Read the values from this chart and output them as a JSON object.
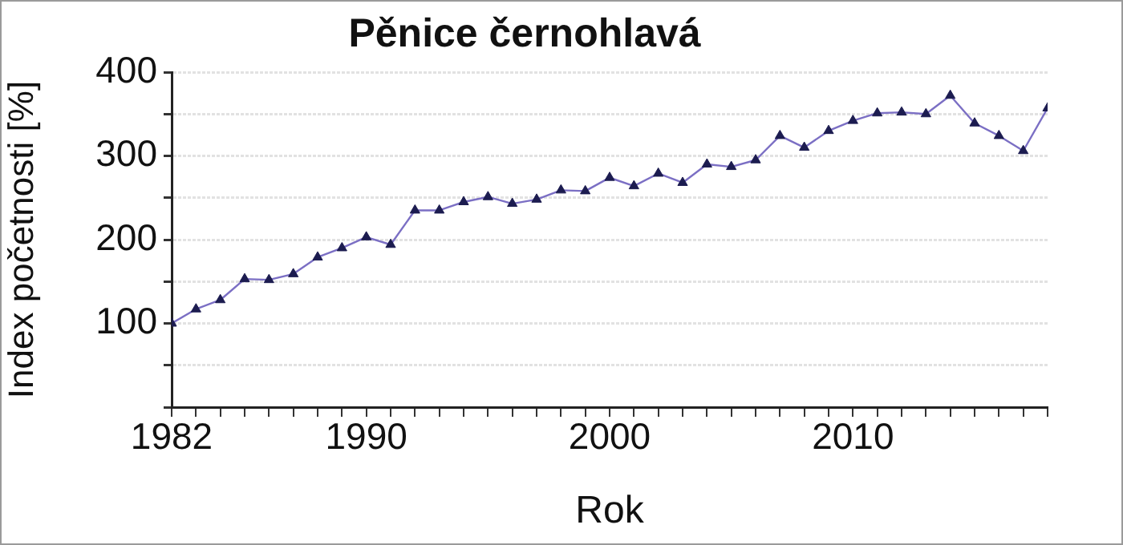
{
  "chart_data": {
    "type": "line",
    "title": "Pěnice černohlavá",
    "xlabel": "Rok",
    "ylabel": "Index početnosti [%]",
    "x": [
      1982,
      1983,
      1984,
      1985,
      1986,
      1987,
      1988,
      1989,
      1990,
      1991,
      1992,
      1993,
      1994,
      1995,
      1996,
      1997,
      1998,
      1999,
      2000,
      2001,
      2002,
      2003,
      2004,
      2005,
      2006,
      2007,
      2008,
      2009,
      2010,
      2011,
      2012,
      2013,
      2014,
      2015,
      2016,
      2017,
      2018
    ],
    "series": [
      {
        "color": "#7b6fc4",
        "values": [
          100,
          117,
          128,
          153,
          152,
          159,
          179,
          190,
          203,
          194,
          235,
          235,
          245,
          251,
          243,
          248,
          259,
          258,
          274,
          264,
          279,
          268,
          290,
          287,
          295,
          324,
          310,
          330,
          342,
          351,
          352,
          350,
          372,
          339,
          324,
          306,
          357
        ]
      }
    ],
    "xlim": [
      1982,
      2018
    ],
    "xticks": [
      1982,
      {
        "value": 1983,
        "label": null
      },
      {
        "value": 1984,
        "label": null
      },
      {
        "value": 1985,
        "label": null
      },
      {
        "value": 1986,
        "label": null
      },
      {
        "value": 1987,
        "label": null
      },
      {
        "value": 1988,
        "label": null
      },
      {
        "value": 1989,
        "label": null
      },
      1990,
      {
        "value": 1991,
        "label": null
      },
      {
        "value": 1992,
        "label": null
      },
      {
        "value": 1993,
        "label": null
      },
      {
        "value": 1994,
        "label": null
      },
      {
        "value": 1995,
        "label": null
      },
      {
        "value": 1996,
        "label": null
      },
      {
        "value": 1997,
        "label": null
      },
      {
        "value": 1998,
        "label": null
      },
      {
        "value": 1999,
        "label": null
      },
      2000,
      {
        "value": 2001,
        "label": null
      },
      {
        "value": 2002,
        "label": null
      },
      {
        "value": 2003,
        "label": null
      },
      {
        "value": 2004,
        "label": null
      },
      {
        "value": 2005,
        "label": null
      },
      {
        "value": 2006,
        "label": null
      },
      {
        "value": 2007,
        "label": null
      },
      {
        "value": 2008,
        "label": null
      },
      {
        "value": 2009,
        "label": null
      },
      2010,
      {
        "value": 2011,
        "label": null
      },
      {
        "value": 2012,
        "label": null
      },
      {
        "value": 2013,
        "label": null
      },
      {
        "value": 2014,
        "label": null
      },
      {
        "value": 2015,
        "label": null
      },
      {
        "value": 2016,
        "label": null
      },
      {
        "value": 2017,
        "label": null
      },
      {
        "value": 2018,
        "label": null
      }
    ],
    "ylim": [
      0,
      400
    ],
    "yticks": [
      {
        "value": 0,
        "label": null
      },
      {
        "value": 50,
        "label": null
      },
      100,
      {
        "value": 150,
        "label": null
      },
      200,
      {
        "value": 250,
        "label": null
      },
      300,
      {
        "value": 350,
        "label": null
      },
      400
    ],
    "grid": "y",
    "legend": false,
    "marker": "triangle",
    "line_style": "solid"
  }
}
